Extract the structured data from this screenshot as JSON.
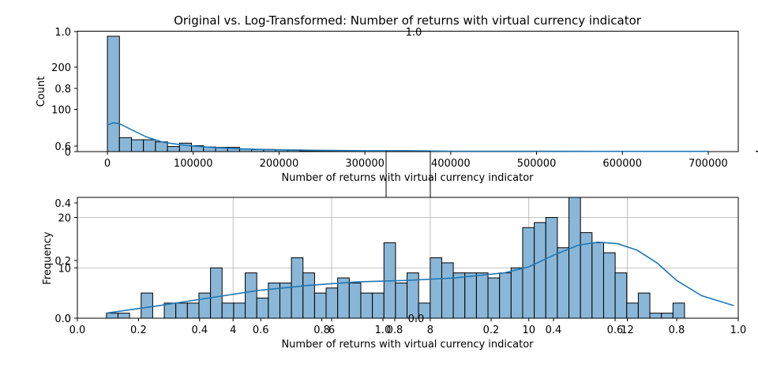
{
  "title": "Original vs. Log-Transformed: Number of returns with virtual currency indicator",
  "colors": {
    "bar": "#8ab7d8",
    "edge": "#000000",
    "kde": "#1f77b4",
    "grid": "#b0b0b0"
  },
  "chart_data": [
    {
      "type": "bar",
      "subtype": "histogram",
      "xlabel": "Number of returns with virtual currency indicator",
      "ylabel": "Count",
      "xlim": [
        -35000,
        735000
      ],
      "ylim": [
        0,
        285
      ],
      "xticks": [
        0,
        100000,
        200000,
        300000,
        400000,
        500000,
        600000,
        700000
      ],
      "xtick_labels": [
        "0",
        "100000",
        "200000",
        "300000",
        "400000",
        "500000",
        "600000",
        "700000"
      ],
      "yticks": [
        0,
        100,
        200
      ],
      "ytick_labels": [
        "0",
        "100",
        "200"
      ],
      "bin_width": 14000,
      "bin_start": 0,
      "counts": [
        273,
        33,
        28,
        28,
        23,
        12,
        20,
        14,
        11,
        10,
        10,
        6,
        5,
        5,
        4,
        3,
        2,
        2,
        2,
        2,
        1,
        1,
        1,
        1,
        0,
        1,
        1,
        0,
        0,
        0,
        0,
        0,
        0,
        0,
        0,
        0,
        0,
        0,
        0,
        0,
        0,
        0,
        0,
        0,
        0,
        0,
        0,
        0,
        0,
        0,
        0,
        0,
        0,
        0,
        1
      ],
      "kde_x": [
        0,
        7000,
        14000,
        28000,
        45000,
        65000,
        90000,
        120000,
        150000,
        180000,
        210000,
        250000,
        300000,
        350000,
        400000,
        500000,
        600000,
        700000
      ],
      "kde_y": [
        63,
        68,
        66,
        52,
        35,
        22,
        15,
        10,
        7,
        5,
        4,
        3,
        2,
        2,
        1,
        1,
        0.5,
        0.5
      ],
      "overlay_ticks": {
        "yticks": [
          "0.6",
          "0.8",
          "1.0"
        ],
        "top_label": "1.0"
      }
    },
    {
      "type": "bar",
      "subtype": "histogram",
      "xlabel": "Number of returns with virtual currency indicator",
      "ylabel": "Frequency",
      "xlim": [
        0.84,
        14.25
      ],
      "ylim": [
        0,
        24
      ],
      "xticks": [
        4,
        6,
        8,
        10,
        12
      ],
      "xtick_labels": [
        "4",
        "6",
        "8",
        "10",
        "12"
      ],
      "yticks": [
        0,
        10,
        20
      ],
      "ytick_labels": [
        "0",
        "10",
        "20"
      ],
      "grid": true,
      "bin_width": 0.2346,
      "bin_start": 1.43,
      "counts": [
        1,
        1,
        0,
        5,
        0,
        3,
        3,
        3,
        5,
        10,
        3,
        3,
        9,
        4,
        7,
        7,
        12,
        9,
        5,
        6,
        8,
        7,
        5,
        5,
        15,
        7,
        9,
        3,
        12,
        11,
        9,
        9,
        9,
        8,
        9,
        10,
        18,
        19,
        20,
        14,
        24,
        17,
        15,
        13,
        9,
        3,
        5,
        1,
        1,
        3
      ],
      "kde_x": [
        1.43,
        2.5,
        3.5,
        4.5,
        5.5,
        6.5,
        7.5,
        8.5,
        9.5,
        10.0,
        10.5,
        11.0,
        11.4,
        11.8,
        12.2,
        12.6,
        13.0,
        13.5,
        14.16
      ],
      "kde_y": [
        1,
        2.5,
        4,
        5.5,
        6.5,
        7.2,
        7.5,
        8,
        9,
        10.2,
        12.5,
        14.5,
        15.1,
        14.8,
        13.5,
        11,
        7.5,
        4.5,
        2.5
      ],
      "overlay_ticks": {
        "xticks": [
          "0.0",
          "0.2",
          "0.4",
          "0.6",
          "0.8",
          "1.0"
        ],
        "yticks": [
          "0.0",
          "0.2",
          "0.4"
        ],
        "inner_xticks": [
          "0.8",
          "0.0",
          "0.2",
          "0.4",
          "0.6",
          "0.8",
          "1.0"
        ]
      }
    }
  ]
}
